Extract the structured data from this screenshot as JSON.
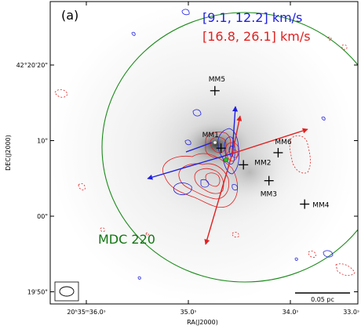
{
  "panel_label": "(a)",
  "legend": {
    "blue_range": "[9.1, 12.2] km/s",
    "red_range": "[16.8, 26.1] km/s"
  },
  "source_name": "MDC 220",
  "axes": {
    "xlabel": "RA(J2000)",
    "ylabel": "DEC(J2000)",
    "x_ticks": [
      {
        "label": "20ʰ35ᵐ36.0ˢ",
        "ra_s": 36.0
      },
      {
        "label": "35.0ˢ",
        "ra_s": 35.0
      },
      {
        "label": "34.0ˢ",
        "ra_s": 34.0
      },
      {
        "label": "33.0ˢ",
        "ra_s": 33.0
      }
    ],
    "y_ticks": [
      {
        "label": "42°20'20\"",
        "dec_arcsec": 20
      },
      {
        "label": "10\"",
        "dec_arcsec": 10
      },
      {
        "label": "00\"",
        "dec_arcsec": 0
      },
      {
        "label": "19'50\"",
        "dec_arcsec": -10
      }
    ]
  },
  "sources": [
    {
      "name": "MM1",
      "ra_s": 34.68,
      "dec_arcsec": 9.0
    },
    {
      "name": "MM2",
      "ra_s": 34.46,
      "dec_arcsec": 6.8
    },
    {
      "name": "MM3",
      "ra_s": 34.21,
      "dec_arcsec": 4.7
    },
    {
      "name": "MM4",
      "ra_s": 33.86,
      "dec_arcsec": 1.6
    },
    {
      "name": "MM5",
      "ra_s": 34.74,
      "dec_arcsec": 16.6
    },
    {
      "name": "MM6",
      "ra_s": 34.12,
      "dec_arcsec": 8.4
    }
  ],
  "scale_bar": {
    "label": "0.05 pc"
  },
  "colors": {
    "blue": "#1f1fe0",
    "red": "#e02020",
    "green": "#1a8a1a",
    "dark_green": "#117711"
  }
}
